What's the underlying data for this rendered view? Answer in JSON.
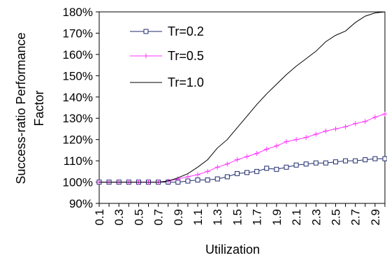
{
  "chart_data": {
    "type": "line",
    "xlabel": "Utilization",
    "ylabel_line1": "Success-ratio Performance",
    "ylabel_line2": "Factor",
    "ylim": [
      90,
      180
    ],
    "xlim": [
      0.1,
      3.0
    ],
    "yticks": [
      "90%",
      "100%",
      "110%",
      "120%",
      "130%",
      "140%",
      "150%",
      "160%",
      "170%",
      "180%"
    ],
    "xtick_labels": [
      "0.1",
      "0.3",
      "0.5",
      "0.7",
      "0.9",
      "1.1",
      "1.3",
      "1.5",
      "1.7",
      "1.9",
      "2.1",
      "2.3",
      "2.5",
      "2.7",
      "2.9"
    ],
    "grid": false,
    "legend_position": "top-left",
    "x": [
      0.1,
      0.2,
      0.3,
      0.4,
      0.5,
      0.6,
      0.7,
      0.8,
      0.9,
      1.0,
      1.1,
      1.2,
      1.3,
      1.4,
      1.5,
      1.6,
      1.7,
      1.8,
      1.9,
      2.0,
      2.1,
      2.2,
      2.3,
      2.4,
      2.5,
      2.6,
      2.7,
      2.8,
      2.9,
      3.0
    ],
    "series": [
      {
        "name": "Tr=0.2",
        "color": "#1f2a6e",
        "marker": "square",
        "values": [
          100,
          100,
          100,
          100,
          100,
          100,
          100,
          100,
          100,
          100.5,
          101,
          101,
          101.5,
          102.5,
          104,
          104.5,
          105,
          106.5,
          106,
          107,
          108,
          108.5,
          109,
          109,
          109.5,
          110,
          110,
          110.5,
          111,
          111
        ]
      },
      {
        "name": "Tr=0.5",
        "color": "#ff33ff",
        "marker": "plus",
        "values": [
          100,
          100,
          100,
          100,
          100,
          100,
          100,
          100.5,
          101.5,
          102.5,
          103.5,
          105,
          107,
          108.5,
          110.5,
          112,
          113.5,
          115.5,
          117,
          119,
          120,
          121,
          122.5,
          124,
          125,
          126,
          127.5,
          128.5,
          130.5,
          132
        ]
      },
      {
        "name": "Tr=1.0",
        "color": "#000000",
        "marker": "none",
        "values": [
          100,
          100,
          100,
          100,
          100,
          100,
          100,
          100.5,
          102,
          104,
          107,
          110.5,
          116,
          120,
          125.5,
          131,
          136.5,
          141.5,
          146,
          150.5,
          154.5,
          158,
          161.5,
          166,
          169,
          171,
          175,
          178,
          179.5,
          180
        ]
      }
    ]
  }
}
